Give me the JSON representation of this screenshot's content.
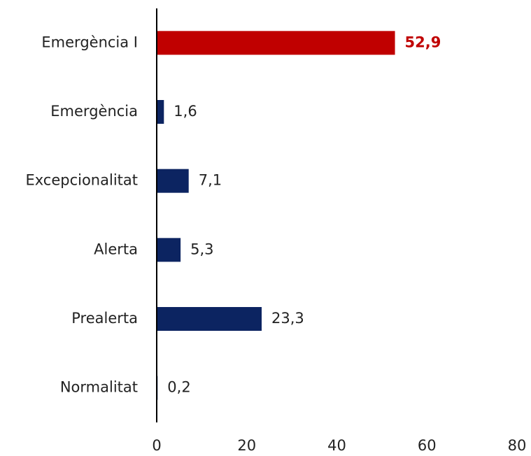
{
  "chart_data": {
    "type": "hbar",
    "categories": [
      "Emergència I",
      "Emergència",
      "Excepcionalitat",
      "Alerta",
      "Prealerta",
      "Normalitat"
    ],
    "values": [
      52.9,
      1.6,
      7.1,
      5.3,
      23.3,
      0.2
    ],
    "value_labels": [
      "52,9",
      "1,6",
      "7,1",
      "5,3",
      "23,3",
      "0,2"
    ],
    "colors": [
      "#c00000",
      "#0c2461",
      "#0c2461",
      "#0c2461",
      "#0c2461",
      "#0c2461"
    ],
    "highlight": 0,
    "xlim": [
      0,
      80
    ],
    "xticks": [
      0,
      20,
      40,
      60,
      80
    ],
    "grid": false
  }
}
